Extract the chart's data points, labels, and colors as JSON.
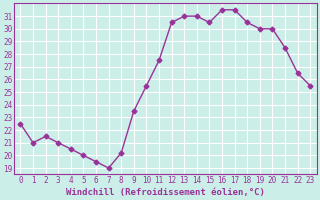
{
  "x": [
    0,
    1,
    2,
    3,
    4,
    5,
    6,
    7,
    8,
    9,
    10,
    11,
    12,
    13,
    14,
    15,
    16,
    17,
    18,
    19,
    20,
    21,
    22,
    23
  ],
  "y": [
    22.5,
    21.0,
    21.5,
    21.0,
    20.5,
    20.0,
    19.5,
    19.0,
    20.2,
    23.5,
    25.5,
    27.5,
    30.5,
    31.0,
    31.0,
    30.5,
    31.5,
    31.5,
    30.5,
    30.0,
    30.0,
    28.5,
    26.5,
    25.5
  ],
  "line_color": "#993399",
  "marker": "D",
  "marker_size": 2.5,
  "bg_color": "#cceee8",
  "grid_color": "#ffffff",
  "tick_color": "#993399",
  "xlabel": "Windchill (Refroidissement éolien,°C)",
  "xlabel_color": "#993399",
  "ylabel_ticks": [
    19,
    20,
    21,
    22,
    23,
    24,
    25,
    26,
    27,
    28,
    29,
    30,
    31
  ],
  "xtick_labels": [
    "0",
    "1",
    "2",
    "3",
    "4",
    "5",
    "6",
    "7",
    "8",
    "9",
    "10",
    "11",
    "12",
    "13",
    "14",
    "15",
    "16",
    "17",
    "18",
    "19",
    "20",
    "21",
    "22",
    "23"
  ],
  "ylim": [
    18.5,
    32.0
  ],
  "xlim": [
    -0.5,
    23.5
  ],
  "tick_fontsize": 5.5,
  "xlabel_fontsize": 6.5,
  "spine_color": "#993399"
}
